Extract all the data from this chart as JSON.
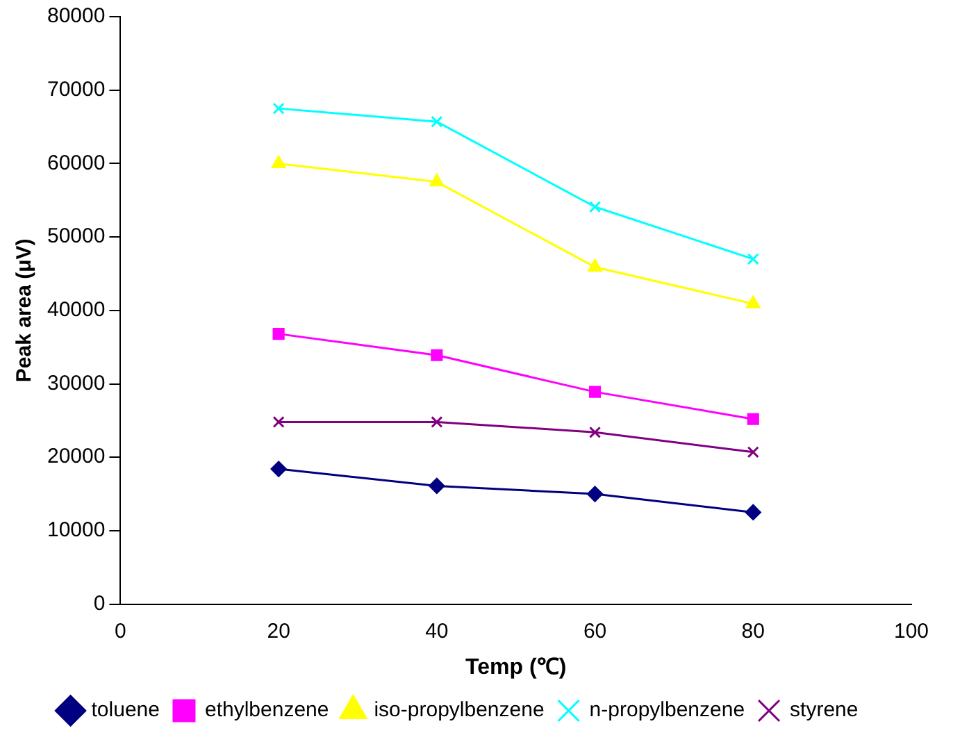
{
  "chart_data": {
    "type": "line",
    "xlabel": "Temp (℃)",
    "ylabel": "Peak area (μV)",
    "x": [
      20,
      40,
      60,
      80
    ],
    "xlim": [
      0,
      100
    ],
    "xticks": [
      0,
      20,
      40,
      60,
      80,
      100
    ],
    "ylim": [
      0,
      80000
    ],
    "yticks": [
      0,
      10000,
      20000,
      30000,
      40000,
      50000,
      60000,
      70000,
      80000
    ],
    "grid": false,
    "legend": "bottom",
    "series": [
      {
        "name": "toluene",
        "color": "#000080",
        "marker": "diamond",
        "values": [
          18400,
          16100,
          15000,
          12500
        ]
      },
      {
        "name": "ethylbenzene",
        "color": "#ff00ff",
        "marker": "square",
        "values": [
          36800,
          33900,
          28900,
          25200
        ]
      },
      {
        "name": "iso-propylbenzene",
        "color": "#ffff00",
        "marker": "triangle",
        "values": [
          60000,
          57500,
          45900,
          40900
        ]
      },
      {
        "name": "n-propylbenzene",
        "color": "#00ffff",
        "marker": "cross",
        "values": [
          67500,
          65700,
          54100,
          47000
        ]
      },
      {
        "name": "styrene",
        "color": "#800080",
        "marker": "cross",
        "values": [
          24800,
          24800,
          23400,
          20700
        ]
      }
    ]
  }
}
